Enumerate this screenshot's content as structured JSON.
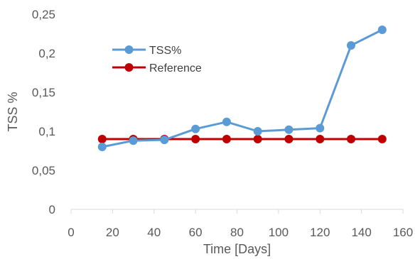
{
  "chart_data": {
    "type": "line",
    "title": "",
    "xlabel": "Time [Days]",
    "ylabel": "TSS %",
    "xlim": [
      0,
      160
    ],
    "ylim": [
      0,
      0.25
    ],
    "x_ticks": [
      {
        "value": 0,
        "label": "0"
      },
      {
        "value": 20,
        "label": "20"
      },
      {
        "value": 40,
        "label": "40"
      },
      {
        "value": 60,
        "label": "60"
      },
      {
        "value": 80,
        "label": "80"
      },
      {
        "value": 100,
        "label": "100"
      },
      {
        "value": 120,
        "label": "120"
      },
      {
        "value": 140,
        "label": "140"
      },
      {
        "value": 160,
        "label": "160"
      }
    ],
    "y_ticks": [
      {
        "value": 0,
        "label": "0"
      },
      {
        "value": 0.05,
        "label": "0,05"
      },
      {
        "value": 0.1,
        "label": "0,1"
      },
      {
        "value": 0.15,
        "label": "0,15"
      },
      {
        "value": 0.2,
        "label": "0,2"
      },
      {
        "value": 0.25,
        "label": "0,25"
      }
    ],
    "grid": false,
    "legend_position": "top-left",
    "series": [
      {
        "name": "TSS%",
        "color": "#5b9bd5",
        "x": [
          15,
          30,
          45,
          60,
          75,
          90,
          105,
          120,
          135,
          150
        ],
        "y": [
          0.08,
          0.088,
          0.089,
          0.103,
          0.112,
          0.1,
          0.102,
          0.104,
          0.21,
          0.23
        ]
      },
      {
        "name": "Reference",
        "color": "#c00000",
        "x": [
          15,
          30,
          45,
          60,
          75,
          90,
          105,
          120,
          135,
          150
        ],
        "y": [
          0.09,
          0.09,
          0.09,
          0.09,
          0.09,
          0.09,
          0.09,
          0.09,
          0.09,
          0.09
        ]
      }
    ]
  }
}
